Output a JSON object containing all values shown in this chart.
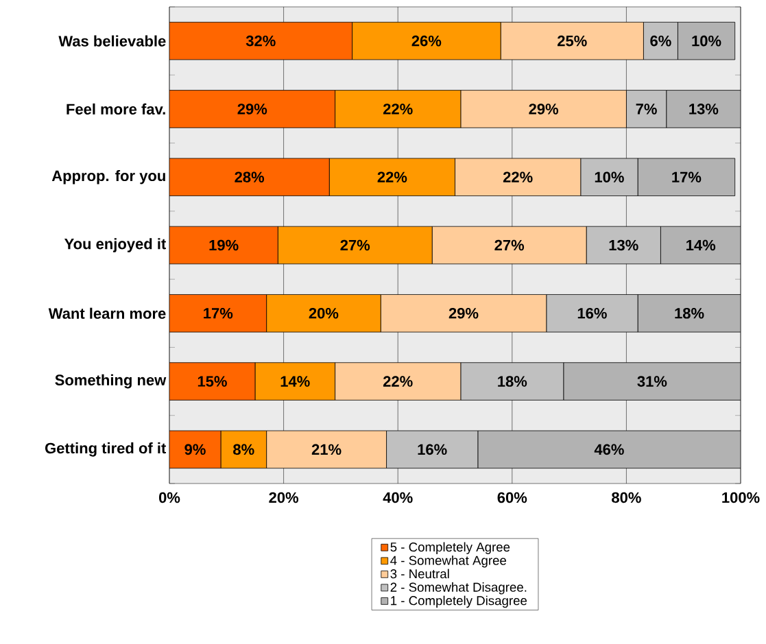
{
  "chart_data": {
    "type": "bar",
    "orientation": "horizontal",
    "stacked": true,
    "categories": [
      "Was believable",
      "Feel more fav.",
      "Approp. for you",
      "You enjoyed it",
      "Want learn more",
      "Something new",
      "Getting tired of it"
    ],
    "series": [
      {
        "name": "5 - Completely Agree",
        "color": "#ff6600",
        "values": [
          32,
          29,
          28,
          19,
          17,
          15,
          9
        ],
        "value_labels": [
          "32%",
          "29%",
          "28%",
          "19%",
          "17%",
          "15%",
          "9%"
        ]
      },
      {
        "name": "4 - Somewhat Agree",
        "color": "#ff9900",
        "values": [
          26,
          22,
          22,
          27,
          20,
          14,
          8
        ],
        "value_labels": [
          "26%",
          "22%",
          "22%",
          "27%",
          "20%",
          "14%",
          "8%"
        ]
      },
      {
        "name": "3 - Neutral",
        "color": "#ffcc99",
        "values": [
          25,
          29,
          22,
          27,
          29,
          22,
          21
        ],
        "value_labels": [
          "25%",
          "29%",
          "22%",
          "27%",
          "29%",
          "22%",
          "21%"
        ]
      },
      {
        "name": "2 - Somewhat Disagree.",
        "color": "#c0c0c0",
        "values": [
          6,
          7,
          10,
          13,
          16,
          18,
          16
        ],
        "value_labels": [
          "6%",
          "7%",
          "10%",
          "13%",
          "16%",
          "18%",
          "16%"
        ]
      },
      {
        "name": "1 - Completely Disagree",
        "color": "#b2b2b2",
        "values": [
          10,
          13,
          17,
          14,
          18,
          31,
          46
        ],
        "value_labels": [
          "10%",
          "13%",
          "17%",
          "14%",
          "18%",
          "31%",
          "46%"
        ]
      }
    ],
    "xlim": [
      0,
      100
    ],
    "xticks": [
      {
        "value": 0,
        "label": "0%"
      },
      {
        "value": 20,
        "label": "20%"
      },
      {
        "value": 40,
        "label": "40%"
      },
      {
        "value": 60,
        "label": "60%"
      },
      {
        "value": 80,
        "label": "80%"
      },
      {
        "value": 100,
        "label": "100%"
      }
    ],
    "grid": "x",
    "legend": "bottom"
  }
}
